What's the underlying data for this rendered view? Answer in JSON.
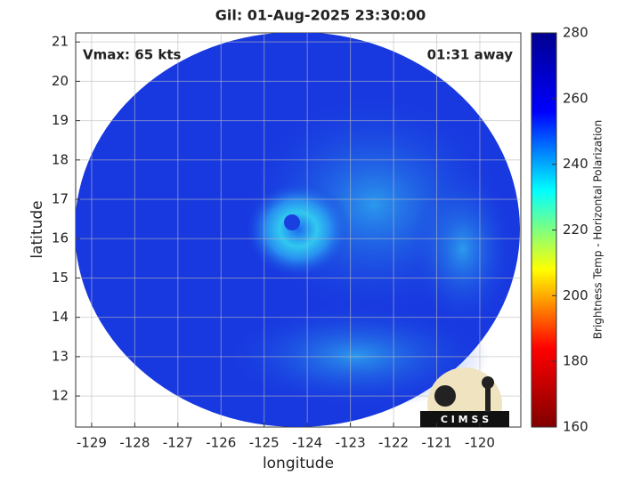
{
  "chart_data": {
    "type": "image",
    "title": "Gil: 01-Aug-2025 23:30:00",
    "annotations": [
      "Vmax: 65 kts",
      "01:31 away"
    ],
    "xlabel": "longitude",
    "ylabel": "latitude",
    "xlim": [
      -129.37,
      -119.05
    ],
    "xticks": [
      -129,
      -128,
      -127,
      -126,
      -125,
      -124,
      -123,
      -122,
      -121,
      -120
    ],
    "ylim": [
      11.21,
      21.23
    ],
    "yticks": [
      12,
      13,
      14,
      15,
      16,
      17,
      18,
      19,
      20,
      21
    ],
    "grid": true,
    "colorbar": {
      "label": "Brightness Temp - Horizontal Polarization",
      "colormap": "jet",
      "lim": [
        160,
        280
      ],
      "ticks": [
        160,
        180,
        200,
        220,
        240,
        260,
        280
      ]
    },
    "logo_text": "C I M S S"
  }
}
